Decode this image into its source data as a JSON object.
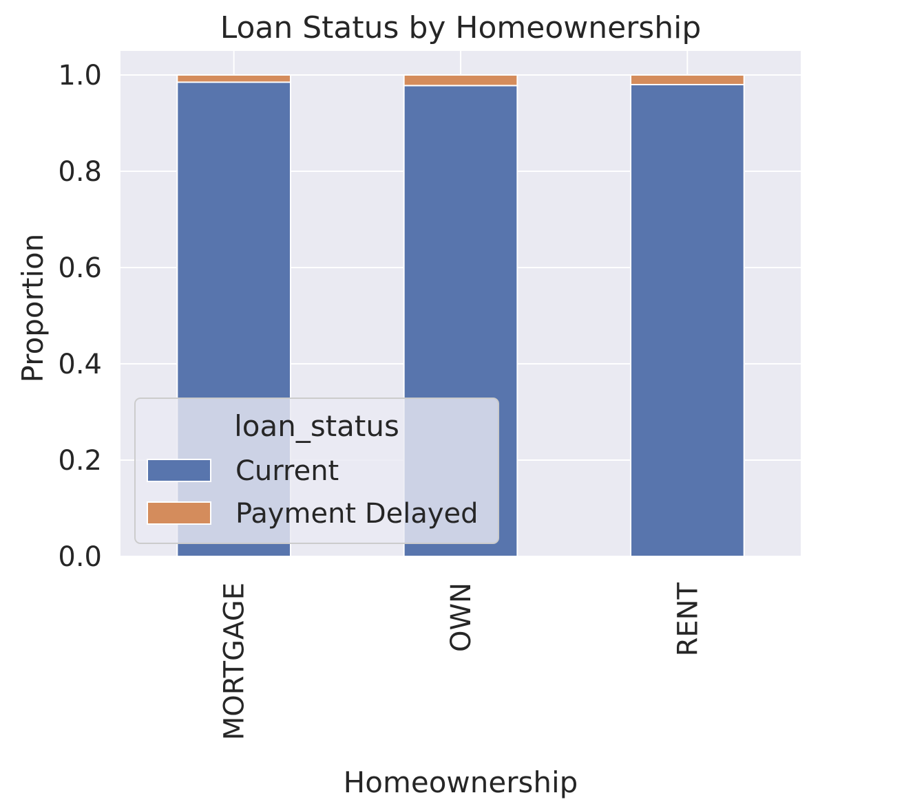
{
  "chart_data": {
    "type": "bar",
    "stacked": true,
    "title": "Loan Status by Homeownership",
    "xlabel": "Homeownership",
    "ylabel": "Proportion",
    "categories": [
      "MORTGAGE",
      "OWN",
      "RENT"
    ],
    "series": [
      {
        "name": "Current",
        "color": "#5875ad",
        "values": [
          0.985,
          0.978,
          0.98
        ]
      },
      {
        "name": "Payment Delayed",
        "color": "#d48c5c",
        "values": [
          0.015,
          0.022,
          0.02
        ]
      }
    ],
    "ylim": [
      0,
      1.05
    ],
    "yticks": [
      "0.0",
      "0.2",
      "0.4",
      "0.6",
      "0.8",
      "1.0"
    ],
    "grid": true,
    "legend": {
      "title": "loan_status",
      "placement": "lower-left"
    },
    "colors": {
      "plot_background": "#eaeaf2",
      "grid": "#ffffff",
      "text": "#262626"
    }
  }
}
